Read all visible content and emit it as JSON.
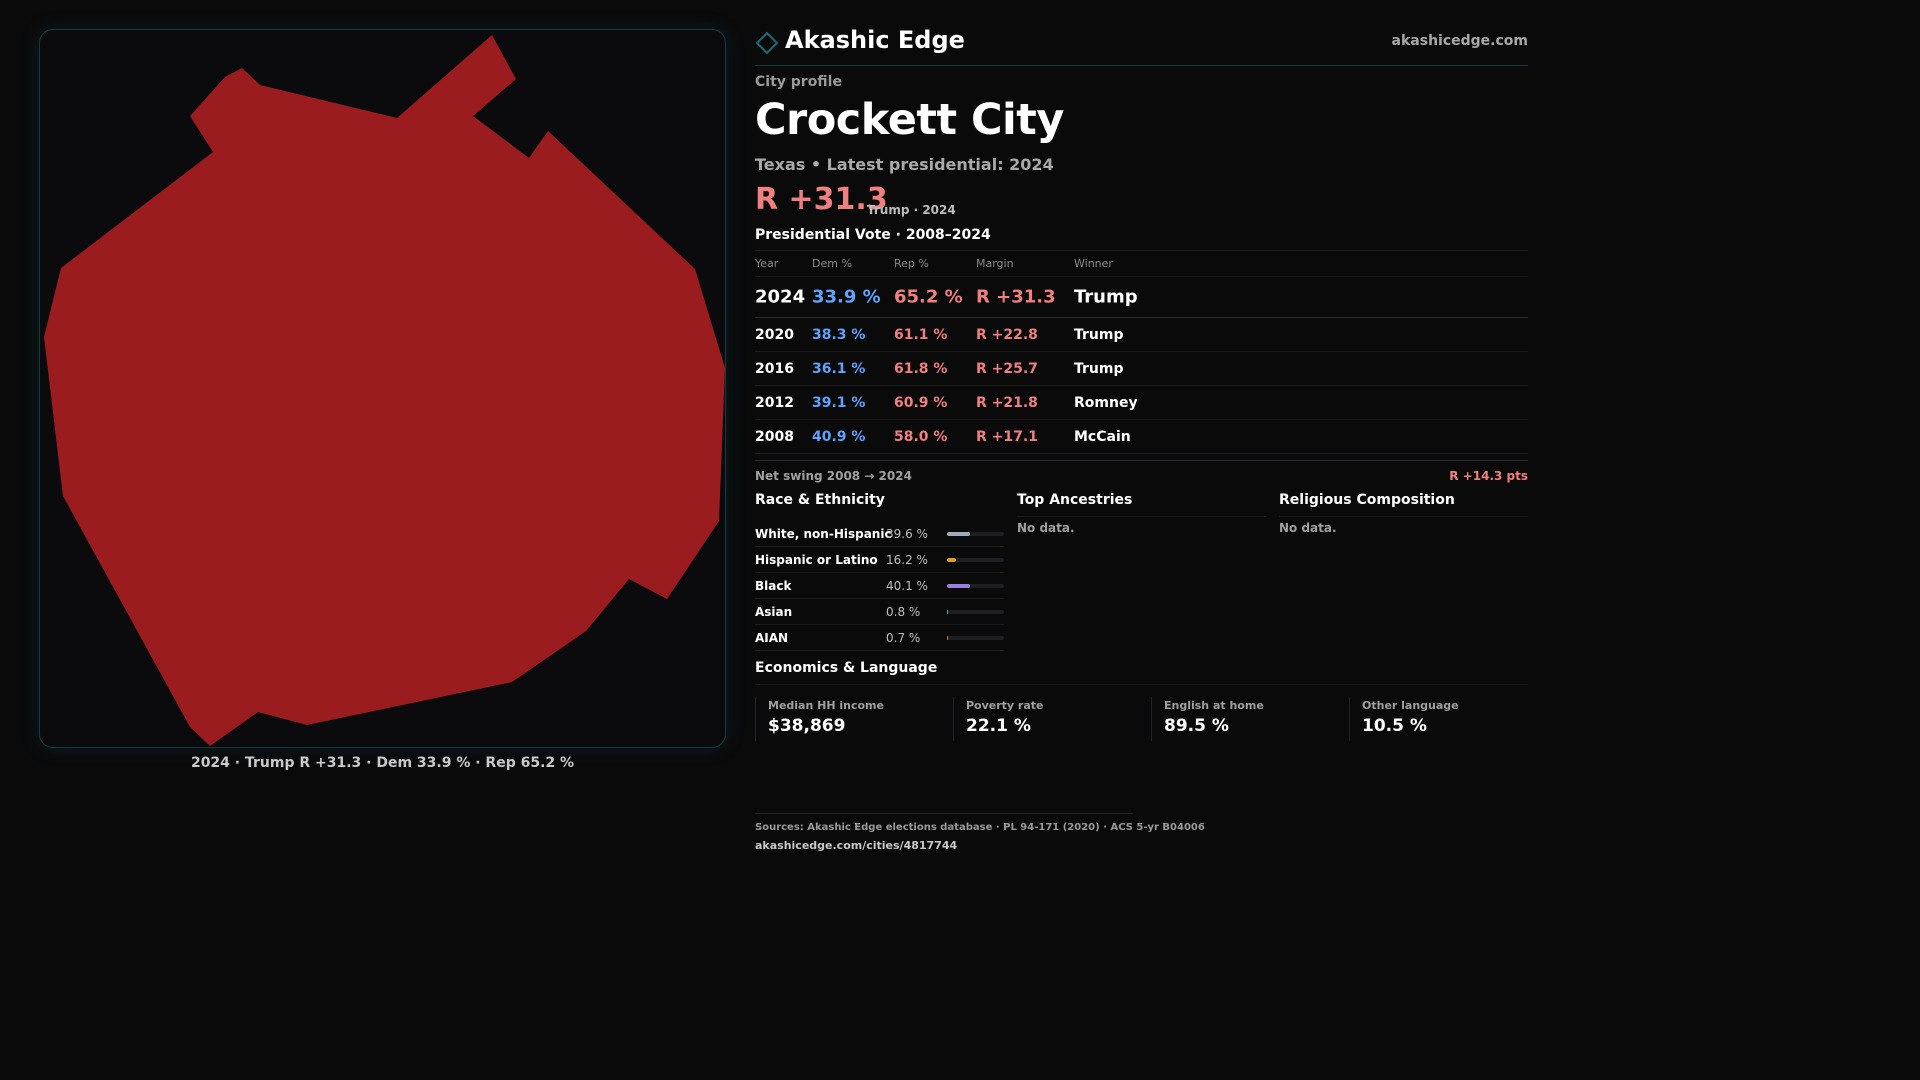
{
  "header": {
    "brand": "Akashic Edge",
    "url": "akashicedge.com"
  },
  "profile": {
    "eyebrow": "City profile",
    "city": "Crockett City",
    "subtitle": "Texas • Latest presidential: 2024",
    "margin": "R +31.3",
    "margin_note": "Trump · 2024"
  },
  "map": {
    "caption": "2024 · Trump R +31.3 · Dem 33.9 % · Rep 65.2 %",
    "fill_color": "#9b1c1f"
  },
  "vote": {
    "title": "Presidential Vote · 2008–2024",
    "headers": {
      "year": "Year",
      "dem": "Dem %",
      "rep": "Rep %",
      "margin": "Margin",
      "winner": "Winner"
    },
    "rows": [
      {
        "year": "2024",
        "dem": "33.9 %",
        "rep": "65.2 %",
        "margin": "R +31.3",
        "winner": "Trump"
      },
      {
        "year": "2020",
        "dem": "38.3 %",
        "rep": "61.1 %",
        "margin": "R +22.8",
        "winner": "Trump"
      },
      {
        "year": "2016",
        "dem": "36.1 %",
        "rep": "61.8 %",
        "margin": "R +25.7",
        "winner": "Trump"
      },
      {
        "year": "2012",
        "dem": "39.1 %",
        "rep": "60.9 %",
        "margin": "R +21.8",
        "winner": "Romney"
      },
      {
        "year": "2008",
        "dem": "40.9 %",
        "rep": "58.0 %",
        "margin": "R +17.1",
        "winner": "McCain"
      }
    ],
    "swing_label": "Net swing 2008 → 2024",
    "swing_value": "R +14.3 pts"
  },
  "race": {
    "title": "Race & Ethnicity",
    "rows": [
      {
        "label": "White, non-Hispanic",
        "pct": "39.6 %",
        "share": 0.396,
        "color": "#a4a8b8"
      },
      {
        "label": "Hispanic or Latino",
        "pct": "16.2 %",
        "share": 0.162,
        "color": "#e0a020"
      },
      {
        "label": "Black",
        "pct": "40.1 %",
        "share": 0.401,
        "color": "#9a7fe0"
      },
      {
        "label": "Asian",
        "pct": "0.8 %",
        "share": 0.008,
        "color": "#3fb88a"
      },
      {
        "label": "AIAN",
        "pct": "0.7 %",
        "share": 0.007,
        "color": "#c07a50"
      }
    ]
  },
  "ancestries": {
    "title": "Top Ancestries",
    "empty": "No data."
  },
  "religion": {
    "title": "Religious Composition",
    "empty": "No data."
  },
  "economics": {
    "title": "Economics & Language",
    "stats": [
      {
        "label": "Median HH income",
        "value": "$38,869"
      },
      {
        "label": "Poverty rate",
        "value": "22.1 %"
      },
      {
        "label": "English at home",
        "value": "89.5 %"
      },
      {
        "label": "Other language",
        "value": "10.5 %"
      }
    ]
  },
  "footer": {
    "sources": "Sources: Akashic Edge elections database · PL 94-171 (2020) · ACS 5-yr B04006",
    "url": "akashicedge.com/cities/4817744"
  }
}
